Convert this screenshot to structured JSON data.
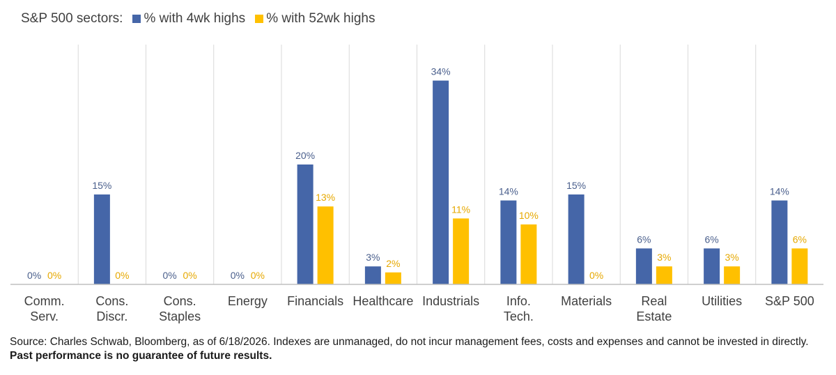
{
  "chart_data": {
    "type": "bar",
    "legend_title": "S&P 500 sectors:",
    "categories": [
      [
        "Comm.",
        "Serv."
      ],
      [
        "Cons.",
        "Discr."
      ],
      [
        "Cons.",
        "Staples"
      ],
      [
        "Energy"
      ],
      [
        "Financials"
      ],
      [
        "Healthcare"
      ],
      [
        "Industrials"
      ],
      [
        "Info.",
        "Tech."
      ],
      [
        "Materials"
      ],
      [
        "Real",
        "Estate"
      ],
      [
        "Utilities"
      ],
      [
        "S&P 500"
      ]
    ],
    "series": [
      {
        "name": "% with 4wk highs",
        "color": "#4566a8",
        "label_color": "#4a5f8c",
        "values": [
          0,
          15,
          0,
          0,
          20,
          3,
          34,
          14,
          15,
          6,
          6,
          14
        ]
      },
      {
        "name": "% with 52wk highs",
        "color": "#ffc000",
        "label_color": "#e6a800",
        "values": [
          0,
          0,
          0,
          0,
          13,
          2,
          11,
          10,
          0,
          3,
          3,
          6
        ]
      }
    ],
    "value_suffix": "%",
    "ylim": [
      0,
      40
    ],
    "grid": false,
    "legend_position": "top-left",
    "colors": {
      "separator": "#d9d9d9",
      "axis": "#bfbfbf",
      "tick_label": "#404040"
    }
  },
  "footnote": {
    "regular": "Source: Charles Schwab, Bloomberg, as of 6/18/2026.   Indexes are unmanaged, do not incur management fees, costs and expenses and cannot be invested in directly. ",
    "bold": "Past performance is no guarantee of future results."
  }
}
